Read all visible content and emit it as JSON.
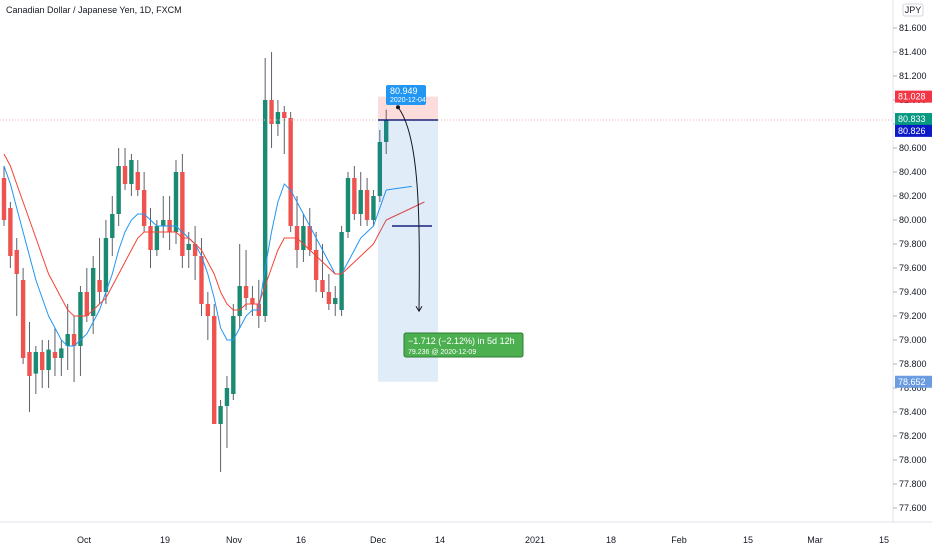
{
  "header": {
    "title": "Canadian Dollar / Japanese Yen, 1D, FXCM",
    "currency_badge": "JPY"
  },
  "colors": {
    "up": "#26a69a",
    "down": "#ef5350",
    "up_body": "#1b8a72",
    "ema_fast": "#2196f3",
    "ema_slow": "#f44336",
    "target_box": "#2e7bd6",
    "stop_box": "#f44336",
    "level_line": "#1a237e"
  },
  "price_tags": [
    {
      "value": "81.028",
      "color": "#f23645"
    },
    {
      "value": "80.833",
      "color": "#089981"
    },
    {
      "value": "80.826",
      "color": "#0d1bc7"
    },
    {
      "value": "78.652",
      "color": "#6c9ce0"
    }
  ],
  "annotations": {
    "entry_price": "80.949",
    "entry_date": "2020-12-04",
    "target_line1": "−1.712 (−2.12%) in 5d 12h",
    "target_line2": "79.236 @ 2020-12-09"
  },
  "chart_data": {
    "type": "candlestick",
    "title": "Canadian Dollar / Japanese Yen, 1D, FXCM",
    "ylim": [
      77.5,
      81.85
    ],
    "y_ticks": [
      "81.600",
      "81.400",
      "81.200",
      "81.000",
      "80.800",
      "80.600",
      "80.400",
      "80.200",
      "80.000",
      "79.800",
      "79.600",
      "79.400",
      "79.200",
      "79.000",
      "78.800",
      "78.600",
      "78.400",
      "78.200",
      "78.000",
      "77.800",
      "77.600"
    ],
    "x_ticks": [
      "Oct",
      "19",
      "Nov",
      "16",
      "Dec",
      "14",
      "2021",
      "18",
      "Feb",
      "15",
      "Mar",
      "15"
    ],
    "candles": [
      {
        "o": 80.35,
        "h": 80.45,
        "l": 79.95,
        "c": 80.0
      },
      {
        "o": 80.1,
        "h": 80.15,
        "l": 79.6,
        "c": 79.7
      },
      {
        "o": 79.75,
        "h": 79.85,
        "l": 79.2,
        "c": 79.55
      },
      {
        "o": 79.5,
        "h": 79.6,
        "l": 78.8,
        "c": 78.85
      },
      {
        "o": 78.9,
        "h": 79.15,
        "l": 78.4,
        "c": 78.7
      },
      {
        "o": 78.72,
        "h": 78.95,
        "l": 78.55,
        "c": 78.9
      },
      {
        "o": 78.9,
        "h": 79.0,
        "l": 78.6,
        "c": 78.75
      },
      {
        "o": 78.75,
        "h": 79.0,
        "l": 78.6,
        "c": 78.92
      },
      {
        "o": 78.9,
        "h": 79.1,
        "l": 78.7,
        "c": 78.85
      },
      {
        "o": 78.85,
        "h": 79.0,
        "l": 78.7,
        "c": 78.93
      },
      {
        "o": 78.95,
        "h": 79.3,
        "l": 78.75,
        "c": 79.05
      },
      {
        "o": 79.05,
        "h": 79.2,
        "l": 78.65,
        "c": 78.95
      },
      {
        "o": 78.95,
        "h": 79.45,
        "l": 78.7,
        "c": 79.4
      },
      {
        "o": 79.4,
        "h": 79.6,
        "l": 79.15,
        "c": 79.2
      },
      {
        "o": 79.2,
        "h": 79.7,
        "l": 79.05,
        "c": 79.6
      },
      {
        "o": 79.5,
        "h": 79.85,
        "l": 79.3,
        "c": 79.4
      },
      {
        "o": 79.4,
        "h": 80.0,
        "l": 79.3,
        "c": 79.85
      },
      {
        "o": 79.85,
        "h": 80.2,
        "l": 79.7,
        "c": 80.05
      },
      {
        "o": 80.05,
        "h": 80.6,
        "l": 79.95,
        "c": 80.45
      },
      {
        "o": 80.45,
        "h": 80.6,
        "l": 80.25,
        "c": 80.3
      },
      {
        "o": 80.3,
        "h": 80.55,
        "l": 80.2,
        "c": 80.5
      },
      {
        "o": 80.4,
        "h": 80.5,
        "l": 80.2,
        "c": 80.25
      },
      {
        "o": 80.25,
        "h": 80.4,
        "l": 79.9,
        "c": 79.95
      },
      {
        "o": 79.95,
        "h": 80.1,
        "l": 79.6,
        "c": 79.75
      },
      {
        "o": 79.75,
        "h": 80.0,
        "l": 79.7,
        "c": 79.95
      },
      {
        "o": 79.95,
        "h": 80.2,
        "l": 79.85,
        "c": 80.0
      },
      {
        "o": 80.0,
        "h": 80.2,
        "l": 79.75,
        "c": 79.9
      },
      {
        "o": 79.9,
        "h": 80.5,
        "l": 79.8,
        "c": 80.4
      },
      {
        "o": 80.4,
        "h": 80.55,
        "l": 79.6,
        "c": 79.7
      },
      {
        "o": 79.75,
        "h": 79.9,
        "l": 79.6,
        "c": 79.8
      },
      {
        "o": 79.8,
        "h": 79.95,
        "l": 79.5,
        "c": 79.7
      },
      {
        "o": 79.7,
        "h": 79.85,
        "l": 79.2,
        "c": 79.3
      },
      {
        "o": 79.3,
        "h": 79.4,
        "l": 79.0,
        "c": 79.2
      },
      {
        "o": 79.2,
        "h": 79.3,
        "l": 78.3,
        "c": 78.3
      },
      {
        "o": 78.3,
        "h": 78.5,
        "l": 77.9,
        "c": 78.45
      },
      {
        "o": 78.45,
        "h": 78.7,
        "l": 78.1,
        "c": 78.6
      },
      {
        "o": 78.55,
        "h": 79.3,
        "l": 78.5,
        "c": 79.2
      },
      {
        "o": 79.2,
        "h": 79.8,
        "l": 79.1,
        "c": 79.45
      },
      {
        "o": 79.45,
        "h": 79.75,
        "l": 79.25,
        "c": 79.35
      },
      {
        "o": 79.35,
        "h": 79.45,
        "l": 79.2,
        "c": 79.3
      },
      {
        "o": 79.3,
        "h": 79.5,
        "l": 79.1,
        "c": 79.2
      },
      {
        "o": 79.2,
        "h": 81.35,
        "l": 79.15,
        "c": 81.0
      },
      {
        "o": 81.0,
        "h": 81.4,
        "l": 80.6,
        "c": 80.8
      },
      {
        "o": 80.8,
        "h": 81.0,
        "l": 80.7,
        "c": 80.9
      },
      {
        "o": 80.9,
        "h": 80.95,
        "l": 80.55,
        "c": 80.85
      },
      {
        "o": 80.85,
        "h": 80.9,
        "l": 79.9,
        "c": 79.95
      },
      {
        "o": 79.95,
        "h": 80.2,
        "l": 79.6,
        "c": 79.75
      },
      {
        "o": 79.75,
        "h": 80.05,
        "l": 79.65,
        "c": 79.95
      },
      {
        "o": 79.95,
        "h": 80.1,
        "l": 79.7,
        "c": 79.75
      },
      {
        "o": 79.75,
        "h": 79.9,
        "l": 79.4,
        "c": 79.5
      },
      {
        "o": 79.5,
        "h": 79.8,
        "l": 79.35,
        "c": 79.4
      },
      {
        "o": 79.4,
        "h": 79.55,
        "l": 79.25,
        "c": 79.3
      },
      {
        "o": 79.3,
        "h": 79.45,
        "l": 79.2,
        "c": 79.35
      },
      {
        "o": 79.25,
        "h": 79.95,
        "l": 79.2,
        "c": 79.9
      },
      {
        "o": 79.9,
        "h": 80.4,
        "l": 79.85,
        "c": 80.35
      },
      {
        "o": 80.35,
        "h": 80.45,
        "l": 80.0,
        "c": 80.05
      },
      {
        "o": 80.05,
        "h": 80.4,
        "l": 79.95,
        "c": 80.25
      },
      {
        "o": 80.25,
        "h": 80.35,
        "l": 79.95,
        "c": 80.0
      },
      {
        "o": 80.0,
        "h": 80.25,
        "l": 79.95,
        "c": 80.2
      },
      {
        "o": 80.2,
        "h": 80.75,
        "l": 80.15,
        "c": 80.65
      },
      {
        "o": 80.65,
        "h": 80.92,
        "l": 80.55,
        "c": 80.83
      }
    ],
    "ema_fast": [
      80.45,
      80.3,
      80.1,
      79.9,
      79.7,
      79.5,
      79.35,
      79.2,
      79.1,
      79.0,
      78.95,
      78.95,
      79.0,
      79.05,
      79.15,
      79.25,
      79.4,
      79.55,
      79.75,
      79.9,
      80.0,
      80.05,
      80.05,
      80.0,
      79.95,
      79.95,
      79.95,
      79.95,
      79.9,
      79.85,
      79.8,
      79.7,
      79.55,
      79.35,
      79.1,
      79.0,
      79.0,
      79.1,
      79.2,
      79.25,
      79.25,
      79.6,
      79.9,
      80.15,
      80.3,
      80.25,
      80.15,
      80.05,
      79.95,
      79.85,
      79.75,
      79.65,
      79.55,
      79.55,
      79.65,
      79.75,
      79.85,
      79.9,
      79.95,
      80.1,
      80.25
    ],
    "ema_slow": [
      80.55,
      80.45,
      80.3,
      80.15,
      80.0,
      79.85,
      79.7,
      79.55,
      79.45,
      79.35,
      79.25,
      79.2,
      79.2,
      79.2,
      79.25,
      79.3,
      79.35,
      79.45,
      79.55,
      79.65,
      79.75,
      79.85,
      79.9,
      79.9,
      79.9,
      79.9,
      79.9,
      79.9,
      79.85,
      79.85,
      79.8,
      79.75,
      79.65,
      79.55,
      79.4,
      79.3,
      79.25,
      79.25,
      79.3,
      79.3,
      79.3,
      79.45,
      79.6,
      79.75,
      79.85,
      79.85,
      79.85,
      79.8,
      79.75,
      79.7,
      79.65,
      79.6,
      79.55,
      79.55,
      79.6,
      79.65,
      79.7,
      79.75,
      79.8,
      79.9,
      80.0
    ],
    "levels": [
      80.833,
      79.95
    ]
  }
}
